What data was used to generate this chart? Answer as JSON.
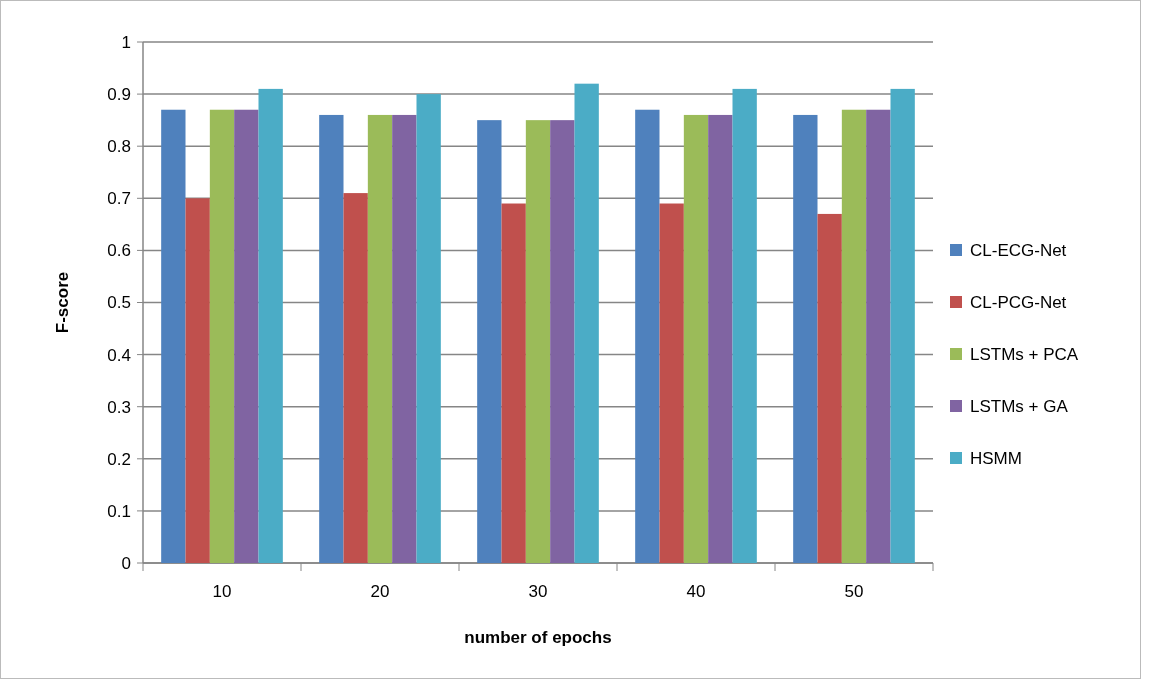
{
  "chart_data": {
    "type": "bar",
    "xlabel": "number of epochs",
    "ylabel": "F-score",
    "categories": [
      "10",
      "20",
      "30",
      "40",
      "50"
    ],
    "series": [
      {
        "name": "CL-ECG-Net",
        "color": "#4f81bd",
        "values": [
          0.87,
          0.86,
          0.85,
          0.87,
          0.86
        ]
      },
      {
        "name": "CL-PCG-Net",
        "color": "#c0504d",
        "values": [
          0.7,
          0.71,
          0.69,
          0.69,
          0.67
        ]
      },
      {
        "name": "LSTMs + PCA",
        "color": "#9bbb59",
        "values": [
          0.87,
          0.86,
          0.85,
          0.86,
          0.87
        ]
      },
      {
        "name": "LSTMs + GA",
        "color": "#8064a2",
        "values": [
          0.87,
          0.86,
          0.85,
          0.86,
          0.87
        ]
      },
      {
        "name": "HSMM",
        "color": "#4bacc6",
        "values": [
          0.91,
          0.9,
          0.92,
          0.91,
          0.91
        ]
      }
    ],
    "ylim": [
      0,
      1
    ],
    "yticks": [
      0,
      0.1,
      0.2,
      0.3,
      0.4,
      0.5,
      0.6,
      0.7,
      0.8,
      0.9,
      1
    ],
    "grid": "y",
    "legend": "right"
  }
}
